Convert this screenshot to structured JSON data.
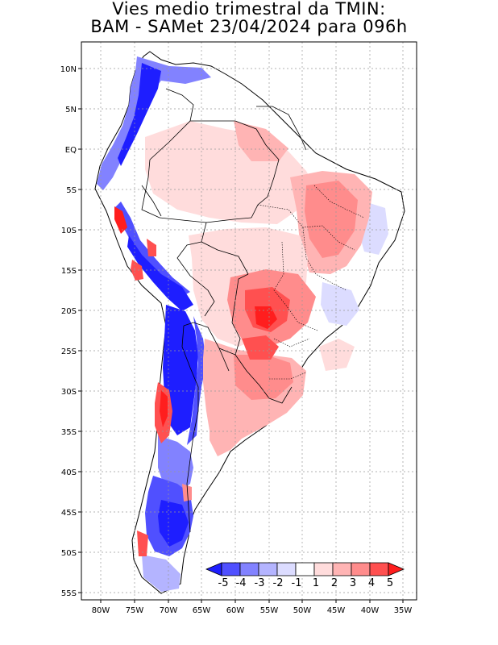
{
  "title": {
    "line1": "Vies medio trimestral da TMIN:",
    "line2": "BAM - SAMet 23/04/2024  para 096h"
  },
  "map": {
    "lat_ticks": [
      "10N",
      "5N",
      "EQ",
      "5S",
      "10S",
      "15S",
      "20S",
      "25S",
      "30S",
      "35S",
      "40S",
      "45S",
      "50S",
      "55S"
    ],
    "lon_ticks": [
      "80W",
      "75W",
      "70W",
      "65W",
      "60W",
      "55W",
      "50W",
      "45W",
      "40W",
      "35W"
    ],
    "colors": {
      "neg5": "#1e1eff",
      "neg4": "#5050ff",
      "neg3": "#8282ff",
      "neg2": "#b4b4ff",
      "neg1": "#dcdcff",
      "near0": "#ffffff",
      "pos1": "#ffdcdc",
      "pos2": "#ffb4b4",
      "pos3": "#ff8c8c",
      "pos4": "#ff5050",
      "pos5": "#ff1e1e"
    }
  },
  "colorbar": {
    "labels": [
      "-5",
      "-4",
      "-3",
      "-2",
      "-1",
      "1",
      "2",
      "3",
      "4",
      "5"
    ]
  }
}
